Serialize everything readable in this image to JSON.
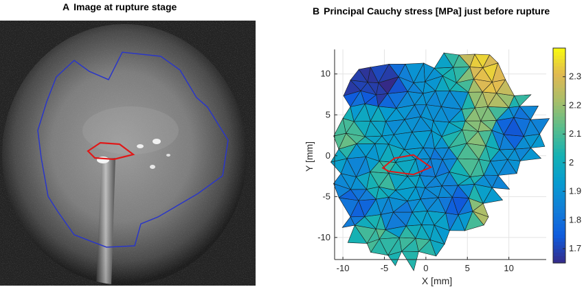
{
  "panel_a": {
    "letter": "A",
    "title": "Image at rupture stage",
    "colors": {
      "boundary": "#2a36c8",
      "rupture": "#e01818"
    }
  },
  "panel_b": {
    "letter": "B",
    "title": "Principal Cauchy stress [MPa] just before rupture"
  },
  "chart_data": {
    "type": "heatmap",
    "title": "Principal Cauchy stress [MPa] just before rupture",
    "xlabel": "X [mm]",
    "ylabel": "Y [mm]",
    "xlim": [
      -11,
      14.5
    ],
    "ylim": [
      -12.7,
      13
    ],
    "x_ticks": [
      -10,
      -5,
      0,
      5,
      10
    ],
    "y_ticks": [
      -10,
      -5,
      0,
      5,
      10
    ],
    "grid": true,
    "colorbar": {
      "min": 1.65,
      "max": 2.4,
      "ticks": [
        1.7,
        1.8,
        1.9,
        2,
        2.1,
        2.2,
        2.3
      ],
      "colormap": "parula"
    },
    "mesh_outline": [
      [
        -4.5,
        11.5
      ],
      [
        -3.2,
        11.7
      ],
      [
        -1.8,
        11.2
      ],
      [
        0.2,
        10.5
      ],
      [
        1.2,
        10.8
      ],
      [
        1.5,
        12.3
      ],
      [
        4,
        12.3
      ],
      [
        6.5,
        12.5
      ],
      [
        8.5,
        11
      ],
      [
        9.5,
        9
      ],
      [
        11,
        8
      ],
      [
        12.5,
        6.5
      ],
      [
        13.3,
        4.5
      ],
      [
        14.5,
        3
      ],
      [
        13.5,
        0.5
      ],
      [
        11.5,
        -1.5
      ],
      [
        9.5,
        -3
      ],
      [
        8.5,
        -4.5
      ],
      [
        7.5,
        -6.5
      ],
      [
        6.2,
        -8.5
      ],
      [
        4.7,
        -9.5
      ],
      [
        3.2,
        -9.5
      ],
      [
        2.3,
        -10.5
      ],
      [
        2,
        -12
      ],
      [
        -1.5,
        -12.7
      ],
      [
        -5,
        -12.5
      ],
      [
        -8,
        -11
      ],
      [
        -9.5,
        -9
      ],
      [
        -10.5,
        -6
      ],
      [
        -11,
        -3
      ],
      [
        -11.1,
        -0.5
      ],
      [
        -10.7,
        2
      ],
      [
        -10,
        4.5
      ],
      [
        -9.8,
        7
      ],
      [
        -9,
        9.5
      ],
      [
        -6.5,
        11
      ]
    ],
    "rupture_outline": [
      [
        -5.2,
        -1.5
      ],
      [
        -3.8,
        -0.3
      ],
      [
        -1.5,
        0.1
      ],
      [
        0.6,
        -1.4
      ],
      [
        -1.5,
        -2.3
      ],
      [
        -4.5,
        -1.9
      ]
    ],
    "stress_hotspots": [
      {
        "x": -5.5,
        "y": 8.2,
        "value": 1.66
      },
      {
        "x": -8,
        "y": 9,
        "value": 1.7
      },
      {
        "x": -2.5,
        "y": 5.3,
        "value": 1.9
      },
      {
        "x": 0.2,
        "y": 10,
        "value": 1.88
      },
      {
        "x": 3.5,
        "y": 9.5,
        "value": 2.05
      },
      {
        "x": 6.5,
        "y": 10.5,
        "value": 2.33
      },
      {
        "x": 8,
        "y": 8.5,
        "value": 2.3
      },
      {
        "x": 6.5,
        "y": 4.5,
        "value": 2.2
      },
      {
        "x": 5.8,
        "y": 1.5,
        "value": 2.15
      },
      {
        "x": 5.5,
        "y": -1.5,
        "value": 2.08
      },
      {
        "x": 10.5,
        "y": 3,
        "value": 1.75
      },
      {
        "x": 12.5,
        "y": 1.5,
        "value": 1.9
      },
      {
        "x": -9.5,
        "y": 2.5,
        "value": 2.12
      },
      {
        "x": -8,
        "y": -1,
        "value": 1.88
      },
      {
        "x": -5.5,
        "y": -2.5,
        "value": 2.08
      },
      {
        "x": -2.5,
        "y": -3.5,
        "value": 1.97
      },
      {
        "x": 0.5,
        "y": -4.5,
        "value": 1.88
      },
      {
        "x": 2,
        "y": -1,
        "value": 1.83
      },
      {
        "x": -8.5,
        "y": -6.5,
        "value": 1.78
      },
      {
        "x": -6,
        "y": -9.5,
        "value": 2.1
      },
      {
        "x": -2,
        "y": -10.5,
        "value": 2.08
      },
      {
        "x": 1,
        "y": -8,
        "value": 1.95
      },
      {
        "x": 4,
        "y": -6,
        "value": 1.72
      },
      {
        "x": 6.5,
        "y": -6.5,
        "value": 2.22
      },
      {
        "x": 8.5,
        "y": -3.5,
        "value": 1.85
      },
      {
        "x": -3.5,
        "y": -7.5,
        "value": 1.82
      },
      {
        "x": 3,
        "y": 6,
        "value": 1.85
      },
      {
        "x": -6.5,
        "y": 4.5,
        "value": 1.97
      },
      {
        "x": 10,
        "y": -1,
        "value": 1.9
      }
    ],
    "mesh_spacing_mm": 1.9
  }
}
